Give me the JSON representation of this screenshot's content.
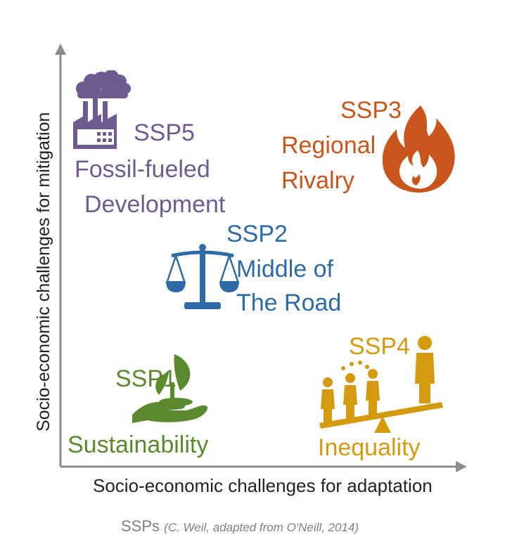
{
  "axes": {
    "x_label": "Socio-economic challenges for adaptation",
    "y_label": "Socio-economic challenges for mitigation"
  },
  "caption": {
    "main": "SSPs",
    "source": "(C. Weil, adapted from O'Neill, 2014)"
  },
  "scenarios": {
    "ssp1": {
      "code": "SSP1",
      "name": "Sustainability",
      "color": "#5b8a2e",
      "icon": "plant-in-hand-icon"
    },
    "ssp2": {
      "code": "SSP2",
      "name_line1": "Middle of",
      "name_line2": "The Road",
      "color": "#2e6aa6",
      "icon": "scales-icon"
    },
    "ssp3": {
      "code": "SSP3",
      "name_line1": "Regional",
      "name_line2": "Rivalry",
      "color": "#c8561c",
      "icon": "flame-icon"
    },
    "ssp4": {
      "code": "SSP4",
      "name": "Inequality",
      "color": "#d49a0f",
      "icon": "unequal-people-seesaw-icon"
    },
    "ssp5": {
      "code": "SSP5",
      "name_line1": "Fossil-fueled",
      "name_line2": "Development",
      "color": "#6e5b8f",
      "icon": "factory-smoke-icon"
    }
  }
}
